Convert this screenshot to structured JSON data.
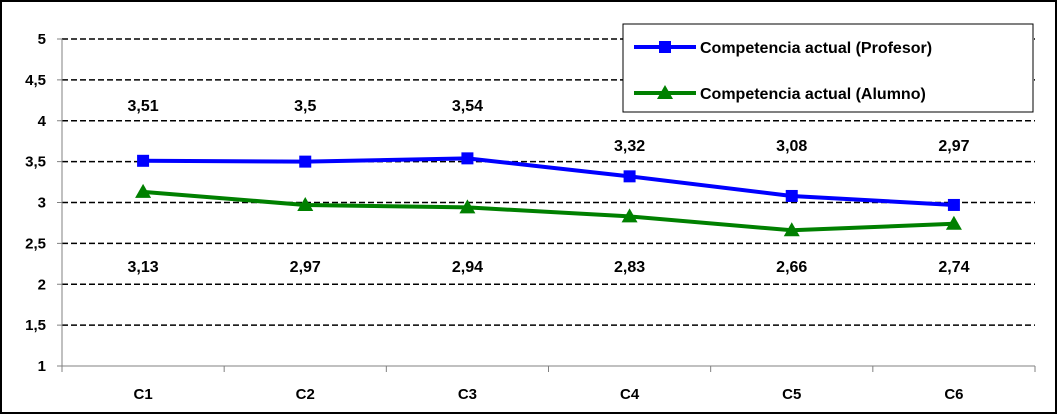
{
  "chart_data": {
    "type": "line",
    "categories": [
      "C1",
      "C2",
      "C3",
      "C4",
      "C5",
      "C6"
    ],
    "y_ticks": [
      "1",
      "1,5",
      "2",
      "2,5",
      "3",
      "3,5",
      "4",
      "4,5",
      "5"
    ],
    "ylim": [
      1,
      5
    ],
    "grid": true,
    "legend_position": "top-right",
    "series": [
      {
        "name": "Competencia actual (Profesor)",
        "values": [
          3.51,
          3.5,
          3.54,
          3.32,
          3.08,
          2.97
        ],
        "labels": [
          "3,51",
          "3,5",
          "3,54",
          "3,32",
          "3,08",
          "2,97"
        ],
        "color": "#0000ff",
        "marker": "square"
      },
      {
        "name": "Competencia actual (Alumno)",
        "values": [
          3.13,
          2.97,
          2.94,
          2.83,
          2.66,
          2.74
        ],
        "labels": [
          "3,13",
          "2,97",
          "2,94",
          "2,83",
          "2,66",
          "2,74"
        ],
        "color": "#008000",
        "marker": "triangle"
      }
    ]
  }
}
